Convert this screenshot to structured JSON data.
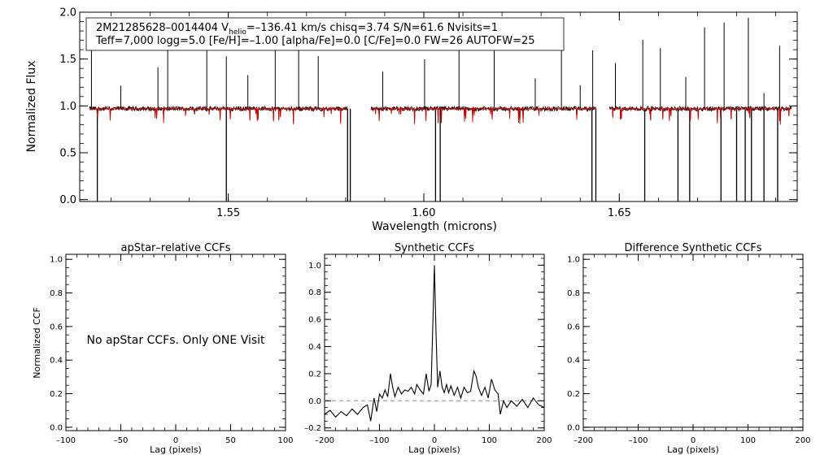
{
  "chart_data": [
    {
      "type": "line",
      "title": "",
      "xlabel": "Wavelength (microns)",
      "ylabel": "Normalized Flux",
      "xlim": [
        1.512,
        1.6955
      ],
      "ylim": [
        -0.02,
        2.0
      ],
      "x_ticks": [
        "1.55",
        "1.60",
        "1.65"
      ],
      "x_tick_values": [
        1.55,
        1.6,
        1.65
      ],
      "y_ticks": [
        "0.0",
        "0.5",
        "1.0",
        "1.5",
        "2.0"
      ],
      "y_tick_values": [
        0.0,
        0.5,
        1.0,
        1.5,
        2.0
      ],
      "annotation_line1": "2M21285628–0014404  V",
      "annotation_sub": "helio",
      "annotation_line1b": "=–136.41 km/s  chisq=3.74  S/N=61.6  Nvisits=1",
      "annotation_line2": "Teff=7,000 logg=5.0 [Fe/H]=–1.00 [alpha/Fe]=0.0 [C/Fe]=0.0 FW=26 AUTOFW=25",
      "chips": [
        [
          1.5145,
          1.5805
        ],
        [
          1.5865,
          1.644
        ],
        [
          1.6475,
          1.694
        ]
      ],
      "continuum": 0.97,
      "spike_up": [
        1.515,
        1.5225,
        1.532,
        1.5345,
        1.5445,
        1.5495,
        1.555,
        1.562,
        1.568,
        1.573,
        1.5895,
        1.6002,
        1.609,
        1.618,
        1.6285,
        1.6352,
        1.64,
        1.6432,
        1.649,
        1.656,
        1.6605,
        1.667,
        1.6718,
        1.6768,
        1.683,
        1.687,
        1.691
      ],
      "spike_down": [
        1.5165,
        1.5495,
        1.5805,
        1.5812,
        1.603,
        1.6042,
        1.643,
        1.644,
        1.6565,
        1.665,
        1.668,
        1.676,
        1.68,
        1.6822,
        1.6838,
        1.687,
        1.6905
      ],
      "series": [
        {
          "name": "",
          "color": "#000000"
        },
        {
          "name": "",
          "color": "#cc0000"
        }
      ]
    },
    {
      "type": "line",
      "title": "apStar–relative CCFs",
      "xlabel": "Lag (pixels)",
      "ylabel": "Normalized CCF",
      "xlim": [
        -100,
        100
      ],
      "ylim": [
        -0.02,
        1.03
      ],
      "x_ticks": [
        "–100",
        "–50",
        "0",
        "50",
        "100"
      ],
      "x_tick_values": [
        -100,
        -50,
        0,
        50,
        100
      ],
      "y_ticks": [
        "0.0",
        "0.2",
        "0.4",
        "0.6",
        "0.8",
        "1.0"
      ],
      "y_tick_values": [
        0.0,
        0.2,
        0.4,
        0.6,
        0.8,
        1.0
      ],
      "message": "No apStar CCFs.  Only ONE Visit"
    },
    {
      "type": "line",
      "title": "Synthetic CCFs",
      "xlabel": "Lag (pixels)",
      "ylabel": "",
      "xlim": [
        -200,
        200
      ],
      "ylim": [
        -0.22,
        1.08
      ],
      "x_ticks": [
        "–200",
        "–100",
        "0",
        "100",
        "200"
      ],
      "x_tick_values": [
        -200,
        -100,
        0,
        100,
        200
      ],
      "y_ticks": [
        "–0.2",
        "0.0",
        "0.2",
        "0.4",
        "0.6",
        "0.8",
        "1.0"
      ],
      "y_tick_values": [
        -0.2,
        0.0,
        0.2,
        0.4,
        0.6,
        0.8,
        1.0
      ],
      "x": [
        -200,
        -190,
        -180,
        -170,
        -160,
        -150,
        -140,
        -130,
        -122,
        -116,
        -110,
        -105,
        -100,
        -95,
        -90,
        -85,
        -80,
        -76,
        -72,
        -66,
        -60,
        -54,
        -48,
        -42,
        -36,
        -32,
        -26,
        -20,
        -15,
        -10,
        -6,
        -3,
        0,
        3,
        6,
        10,
        14,
        18,
        22,
        26,
        30,
        36,
        42,
        48,
        54,
        60,
        66,
        72,
        76,
        80,
        86,
        92,
        98,
        104,
        110,
        116,
        120,
        126,
        132,
        140,
        150,
        160,
        170,
        180,
        190,
        200
      ],
      "y": [
        -0.1,
        -0.07,
        -0.12,
        -0.08,
        -0.11,
        -0.06,
        -0.1,
        -0.05,
        -0.03,
        -0.15,
        0.02,
        -0.08,
        0.05,
        0.02,
        0.08,
        0.03,
        0.2,
        0.1,
        0.03,
        0.1,
        0.05,
        0.08,
        0.07,
        0.1,
        0.05,
        0.12,
        0.08,
        0.05,
        0.2,
        0.07,
        0.12,
        0.55,
        1.0,
        0.5,
        0.1,
        0.22,
        0.1,
        0.06,
        0.12,
        0.06,
        0.11,
        0.04,
        0.1,
        0.02,
        0.1,
        0.06,
        0.07,
        0.22,
        0.18,
        0.1,
        0.04,
        0.1,
        0.02,
        0.16,
        0.08,
        0.05,
        -0.1,
        0.0,
        -0.05,
        0.0,
        -0.04,
        0.01,
        -0.05,
        0.02,
        -0.03,
        -0.05
      ],
      "reference_line": 0.0
    },
    {
      "type": "line",
      "title": "Difference Synthetic CCFs",
      "xlabel": "Lag (pixels)",
      "ylabel": "",
      "xlim": [
        -200,
        200
      ],
      "ylim": [
        -0.02,
        1.03
      ],
      "x_ticks": [
        "–200",
        "–100",
        "0",
        "100",
        "200"
      ],
      "x_tick_values": [
        -200,
        -100,
        0,
        100,
        200
      ],
      "y_ticks": [
        "0.0",
        "0.2",
        "0.4",
        "0.6",
        "0.8",
        "1.0"
      ],
      "y_tick_values": [
        0.0,
        0.2,
        0.4,
        0.6,
        0.8,
        1.0
      ],
      "x": [
        -200,
        200
      ],
      "y": [
        0.0,
        0.0
      ]
    }
  ]
}
